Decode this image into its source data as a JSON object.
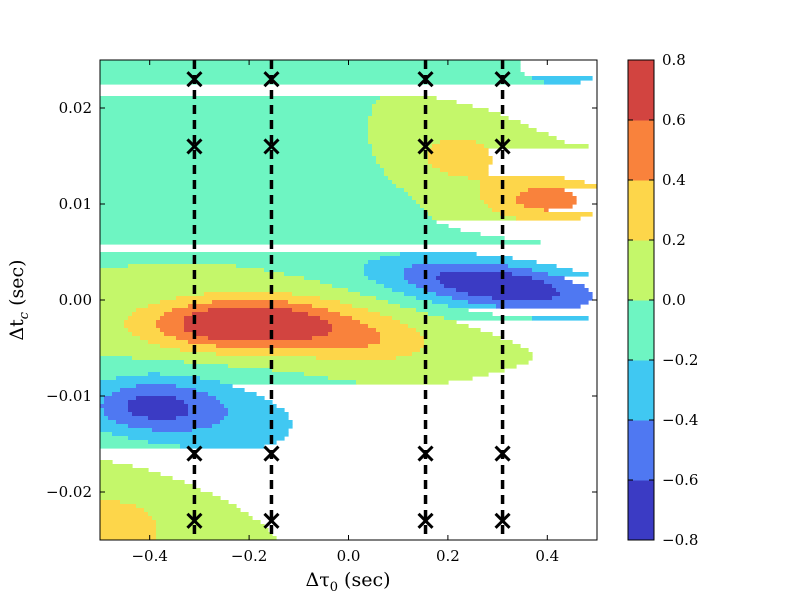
{
  "chart_data": {
    "type": "heatmap",
    "subtype": "filled-contour",
    "title": "",
    "xlabel": {
      "prefix": "Δτ",
      "sub": "0",
      "suffix": " (sec)"
    },
    "ylabel": {
      "prefix": "Δt",
      "sub": "c",
      "suffix": " (sec)"
    },
    "xlim": [
      -0.5,
      0.5
    ],
    "ylim": [
      -0.025,
      0.025
    ],
    "xticks": [
      -0.4,
      -0.2,
      0.0,
      0.2,
      0.4
    ],
    "xtick_labels": [
      "−0.4",
      "−0.2",
      "0.0",
      "0.2",
      "0.4"
    ],
    "yticks": [
      -0.02,
      -0.01,
      0.0,
      0.01,
      0.02
    ],
    "ytick_labels": [
      "−0.02",
      "−0.01",
      "0.00",
      "0.01",
      "0.02"
    ],
    "colorbar": {
      "levels": [
        -0.8,
        -0.6,
        -0.4,
        -0.2,
        0.0,
        0.2,
        0.4,
        0.6,
        0.8
      ],
      "labels": [
        "−0.8",
        "−0.6",
        "−0.4",
        "−0.2",
        "0.0",
        "0.2",
        "0.4",
        "0.6",
        "0.8"
      ],
      "colors": [
        "#3b3bc4",
        "#4f78f2",
        "#40c8f2",
        "#6ef5c2",
        "#c4f76a",
        "#fdd64a",
        "#f9823c",
        "#d24440"
      ]
    },
    "dashed_lines_x": [
      -0.31,
      -0.155,
      0.155,
      0.31
    ],
    "markers": {
      "symbol": "x",
      "points": [
        [
          -0.31,
          0.023
        ],
        [
          -0.31,
          0.016
        ],
        [
          -0.31,
          -0.016
        ],
        [
          -0.31,
          -0.023
        ],
        [
          -0.155,
          0.023
        ],
        [
          -0.155,
          0.016
        ],
        [
          -0.155,
          -0.016
        ],
        [
          -0.155,
          -0.023
        ],
        [
          0.155,
          0.023
        ],
        [
          0.155,
          0.016
        ],
        [
          0.155,
          -0.016
        ],
        [
          0.155,
          -0.023
        ],
        [
          0.31,
          0.023
        ],
        [
          0.31,
          0.016
        ],
        [
          0.31,
          -0.016
        ],
        [
          0.31,
          -0.023
        ]
      ]
    },
    "field_features": [
      {
        "cx": -0.2,
        "cy": -0.0025,
        "sx": 0.2,
        "sy": 0.0027,
        "amp": 0.95,
        "tilt": 0.0
      },
      {
        "cx": 0.3,
        "cy": 0.0015,
        "sx": 0.23,
        "sy": 0.0026,
        "amp": -0.8,
        "tilt": -0.006
      },
      {
        "cx": -0.4,
        "cy": -0.011,
        "sx": 0.14,
        "sy": 0.003,
        "amp": -0.62,
        "tilt": 0.0
      },
      {
        "cx": -0.22,
        "cy": -0.013,
        "sx": 0.18,
        "sy": 0.0045,
        "amp": -0.25,
        "tilt": 0.0
      },
      {
        "cx": 0.4,
        "cy": 0.0105,
        "sx": 0.13,
        "sy": 0.0024,
        "amp": 0.5,
        "tilt": 0.0
      },
      {
        "cx": 0.22,
        "cy": 0.015,
        "sx": 0.1,
        "sy": 0.003,
        "amp": 0.3,
        "tilt": 0.0
      },
      {
        "cx": 0.43,
        "cy": 0.025,
        "sx": 0.14,
        "sy": 0.004,
        "amp": -0.3,
        "tilt": 0.0
      },
      {
        "cx": -0.48,
        "cy": -0.024,
        "sx": 0.14,
        "sy": 0.0045,
        "amp": 0.32,
        "tilt": 0.0
      },
      {
        "cx": -0.2,
        "cy": 0.0115,
        "sx": 0.32,
        "sy": 0.0045,
        "amp": -0.06,
        "tilt": 0.0
      },
      {
        "cx": 0.2,
        "cy": -0.016,
        "sx": 0.3,
        "sy": 0.005,
        "amp": -0.06,
        "tilt": 0.0
      },
      {
        "cx": 0.05,
        "cy": -0.0045,
        "sx": 0.14,
        "sy": 0.0025,
        "amp": 0.3,
        "tilt": 0.0
      }
    ]
  }
}
